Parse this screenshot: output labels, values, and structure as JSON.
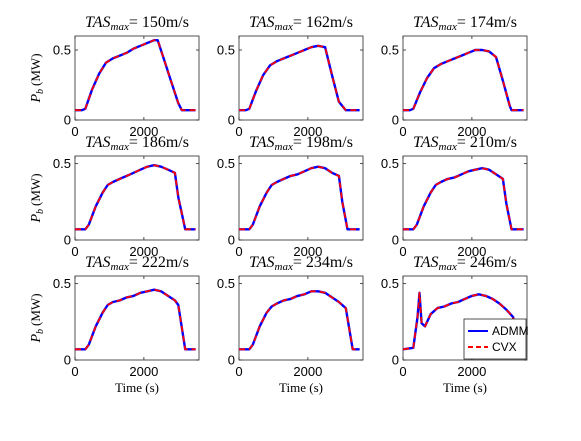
{
  "chart_data": {
    "type": "line",
    "rows": 3,
    "cols": 3,
    "xlim": [
      0,
      3600
    ],
    "xticks": [
      0,
      2000
    ],
    "xtick_labels": [
      "0",
      "2000"
    ],
    "xlabel": "Time (s)",
    "ylabel": "P_b (MW)",
    "grid": false,
    "legend": {
      "placement": "lower-right",
      "panel_index": 8,
      "entries": [
        {
          "name": "ADMM",
          "color": "#0000ff",
          "style": "solid"
        },
        {
          "name": "CVX",
          "color": "#ff0000",
          "style": "dashed"
        }
      ]
    },
    "panels": [
      {
        "title_var": "TAS",
        "title_sub": "max",
        "title_value": "= 150m/s",
        "ylim": [
          0,
          0.6
        ],
        "yticks": [
          0,
          0.5
        ],
        "ytick_labels": [
          "0",
          "0.5"
        ],
        "x": [
          0,
          200,
          300,
          500,
          700,
          900,
          1100,
          1300,
          1500,
          1700,
          1900,
          2100,
          2300,
          2400,
          2600,
          2800,
          3000,
          3100,
          3500
        ],
        "y": [
          0.07,
          0.07,
          0.08,
          0.22,
          0.33,
          0.41,
          0.44,
          0.46,
          0.48,
          0.51,
          0.53,
          0.55,
          0.57,
          0.57,
          0.42,
          0.27,
          0.12,
          0.07,
          0.07
        ]
      },
      {
        "title_var": "TAS",
        "title_sub": "max",
        "title_value": "= 162m/s",
        "ylim": [
          0,
          0.6
        ],
        "yticks": [
          0,
          0.5
        ],
        "ytick_labels": [
          "0",
          "0.5"
        ],
        "x": [
          0,
          200,
          300,
          500,
          700,
          900,
          1100,
          1300,
          1500,
          1700,
          1900,
          2100,
          2300,
          2500,
          2700,
          2900,
          3100,
          3500
        ],
        "y": [
          0.07,
          0.07,
          0.08,
          0.21,
          0.32,
          0.39,
          0.42,
          0.44,
          0.46,
          0.48,
          0.5,
          0.52,
          0.53,
          0.52,
          0.32,
          0.13,
          0.07,
          0.07
        ]
      },
      {
        "title_var": "TAS",
        "title_sub": "max",
        "title_value": "= 174m/s",
        "ylim": [
          0,
          0.6
        ],
        "yticks": [
          0,
          0.5
        ],
        "ytick_labels": [
          "0",
          "0.5"
        ],
        "x": [
          0,
          200,
          300,
          500,
          700,
          900,
          1100,
          1300,
          1500,
          1700,
          1900,
          2100,
          2300,
          2500,
          2700,
          2900,
          3100,
          3150,
          3500
        ],
        "y": [
          0.07,
          0.07,
          0.08,
          0.2,
          0.3,
          0.37,
          0.4,
          0.42,
          0.44,
          0.46,
          0.48,
          0.5,
          0.5,
          0.49,
          0.45,
          0.28,
          0.1,
          0.07,
          0.07
        ]
      },
      {
        "title_var": "TAS",
        "title_sub": "max",
        "title_value": "= 186m/s",
        "ylim": [
          0,
          0.55
        ],
        "yticks": [
          0,
          0.5
        ],
        "ytick_labels": [
          "0",
          "0.5"
        ],
        "x": [
          0,
          300,
          400,
          600,
          800,
          950,
          1100,
          1300,
          1500,
          1700,
          1900,
          2100,
          2300,
          2500,
          2700,
          2900,
          3000,
          3200,
          3500
        ],
        "y": [
          0.07,
          0.07,
          0.1,
          0.22,
          0.31,
          0.36,
          0.38,
          0.4,
          0.42,
          0.44,
          0.46,
          0.48,
          0.49,
          0.48,
          0.46,
          0.44,
          0.28,
          0.07,
          0.07
        ]
      },
      {
        "title_var": "TAS",
        "title_sub": "max",
        "title_value": "= 198m/s",
        "ylim": [
          0,
          0.55
        ],
        "yticks": [
          0,
          0.5
        ],
        "ytick_labels": [
          "0",
          "0.5"
        ],
        "x": [
          0,
          300,
          400,
          600,
          800,
          950,
          1100,
          1300,
          1500,
          1700,
          1900,
          2100,
          2300,
          2500,
          2700,
          2900,
          3000,
          3150,
          3500
        ],
        "y": [
          0.07,
          0.07,
          0.1,
          0.22,
          0.31,
          0.36,
          0.38,
          0.4,
          0.42,
          0.43,
          0.45,
          0.47,
          0.48,
          0.47,
          0.44,
          0.42,
          0.25,
          0.07,
          0.07
        ]
      },
      {
        "title_var": "TAS",
        "title_sub": "max",
        "title_value": "= 210m/s",
        "ylim": [
          0,
          0.55
        ],
        "yticks": [
          0,
          0.5
        ],
        "ytick_labels": [
          "0",
          "0.5"
        ],
        "x": [
          0,
          300,
          400,
          600,
          800,
          950,
          1100,
          1300,
          1500,
          1700,
          1900,
          2100,
          2300,
          2500,
          2700,
          2900,
          3000,
          3150,
          3500
        ],
        "y": [
          0.07,
          0.07,
          0.1,
          0.22,
          0.31,
          0.36,
          0.38,
          0.4,
          0.41,
          0.43,
          0.45,
          0.46,
          0.47,
          0.46,
          0.43,
          0.4,
          0.24,
          0.07,
          0.07
        ]
      },
      {
        "title_var": "TAS",
        "title_sub": "max",
        "title_value": "= 222m/s",
        "ylim": [
          0,
          0.55
        ],
        "yticks": [
          0,
          0.5
        ],
        "ytick_labels": [
          "0",
          "0.5"
        ],
        "x": [
          0,
          300,
          400,
          600,
          800,
          950,
          1100,
          1300,
          1500,
          1700,
          1900,
          2100,
          2300,
          2500,
          2700,
          2900,
          3000,
          3200,
          3500
        ],
        "y": [
          0.07,
          0.07,
          0.1,
          0.22,
          0.31,
          0.36,
          0.38,
          0.39,
          0.41,
          0.42,
          0.44,
          0.45,
          0.46,
          0.45,
          0.42,
          0.39,
          0.36,
          0.07,
          0.07
        ]
      },
      {
        "title_var": "TAS",
        "title_sub": "max",
        "title_value": "= 234m/s",
        "ylim": [
          0,
          0.55
        ],
        "yticks": [
          0,
          0.5
        ],
        "ytick_labels": [
          "0",
          "0.5"
        ],
        "x": [
          0,
          300,
          400,
          600,
          800,
          950,
          1100,
          1300,
          1500,
          1700,
          1900,
          2100,
          2300,
          2500,
          2700,
          2900,
          3100,
          3300,
          3500
        ],
        "y": [
          0.07,
          0.07,
          0.1,
          0.22,
          0.31,
          0.35,
          0.37,
          0.39,
          0.4,
          0.42,
          0.43,
          0.45,
          0.45,
          0.44,
          0.41,
          0.38,
          0.34,
          0.07,
          0.07
        ]
      },
      {
        "title_var": "TAS",
        "title_sub": "max",
        "title_value": "= 246m/s",
        "ylim": [
          0,
          0.55
        ],
        "yticks": [
          0,
          0.5
        ],
        "ytick_labels": [
          "0",
          "0.5"
        ],
        "x": [
          0,
          300,
          420,
          480,
          540,
          640,
          800,
          1000,
          1200,
          1400,
          1600,
          1800,
          2000,
          2200,
          2400,
          2600,
          2800,
          3000,
          3200,
          3250,
          3500
        ],
        "y": [
          0.07,
          0.08,
          0.28,
          0.44,
          0.24,
          0.22,
          0.3,
          0.34,
          0.35,
          0.37,
          0.38,
          0.4,
          0.42,
          0.43,
          0.42,
          0.4,
          0.37,
          0.33,
          0.28,
          0.07,
          0.07
        ]
      }
    ]
  }
}
